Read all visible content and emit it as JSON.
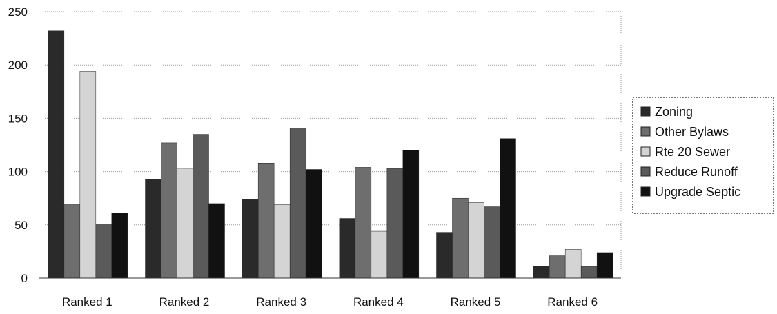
{
  "chart_data": {
    "type": "bar",
    "categories": [
      "Ranked 1",
      "Ranked 2",
      "Ranked 3",
      "Ranked 4",
      "Ranked 5",
      "Ranked 6"
    ],
    "series": [
      {
        "name": "Zoning",
        "values": [
          232,
          93,
          74,
          56,
          43,
          11
        ],
        "color": "#2a2a2a"
      },
      {
        "name": "Other Bylaws",
        "values": [
          69,
          127,
          108,
          104,
          75,
          21
        ],
        "color": "#6e6e6e"
      },
      {
        "name": "Rte 20 Sewer",
        "values": [
          194,
          103,
          69,
          44,
          71,
          27
        ],
        "color": "#d4d4d4"
      },
      {
        "name": "Reduce Runoff",
        "values": [
          51,
          135,
          141,
          103,
          67,
          11
        ],
        "color": "#5a5a5a"
      },
      {
        "name": "Upgrade Septic",
        "values": [
          61,
          70,
          102,
          120,
          131,
          24
        ],
        "color": "#111111"
      }
    ],
    "ylim": [
      0,
      250
    ],
    "yticks": [
      0,
      50,
      100,
      150,
      200,
      250
    ],
    "title": "",
    "xlabel": "",
    "ylabel": "",
    "grid": true,
    "legend_position": "right"
  }
}
